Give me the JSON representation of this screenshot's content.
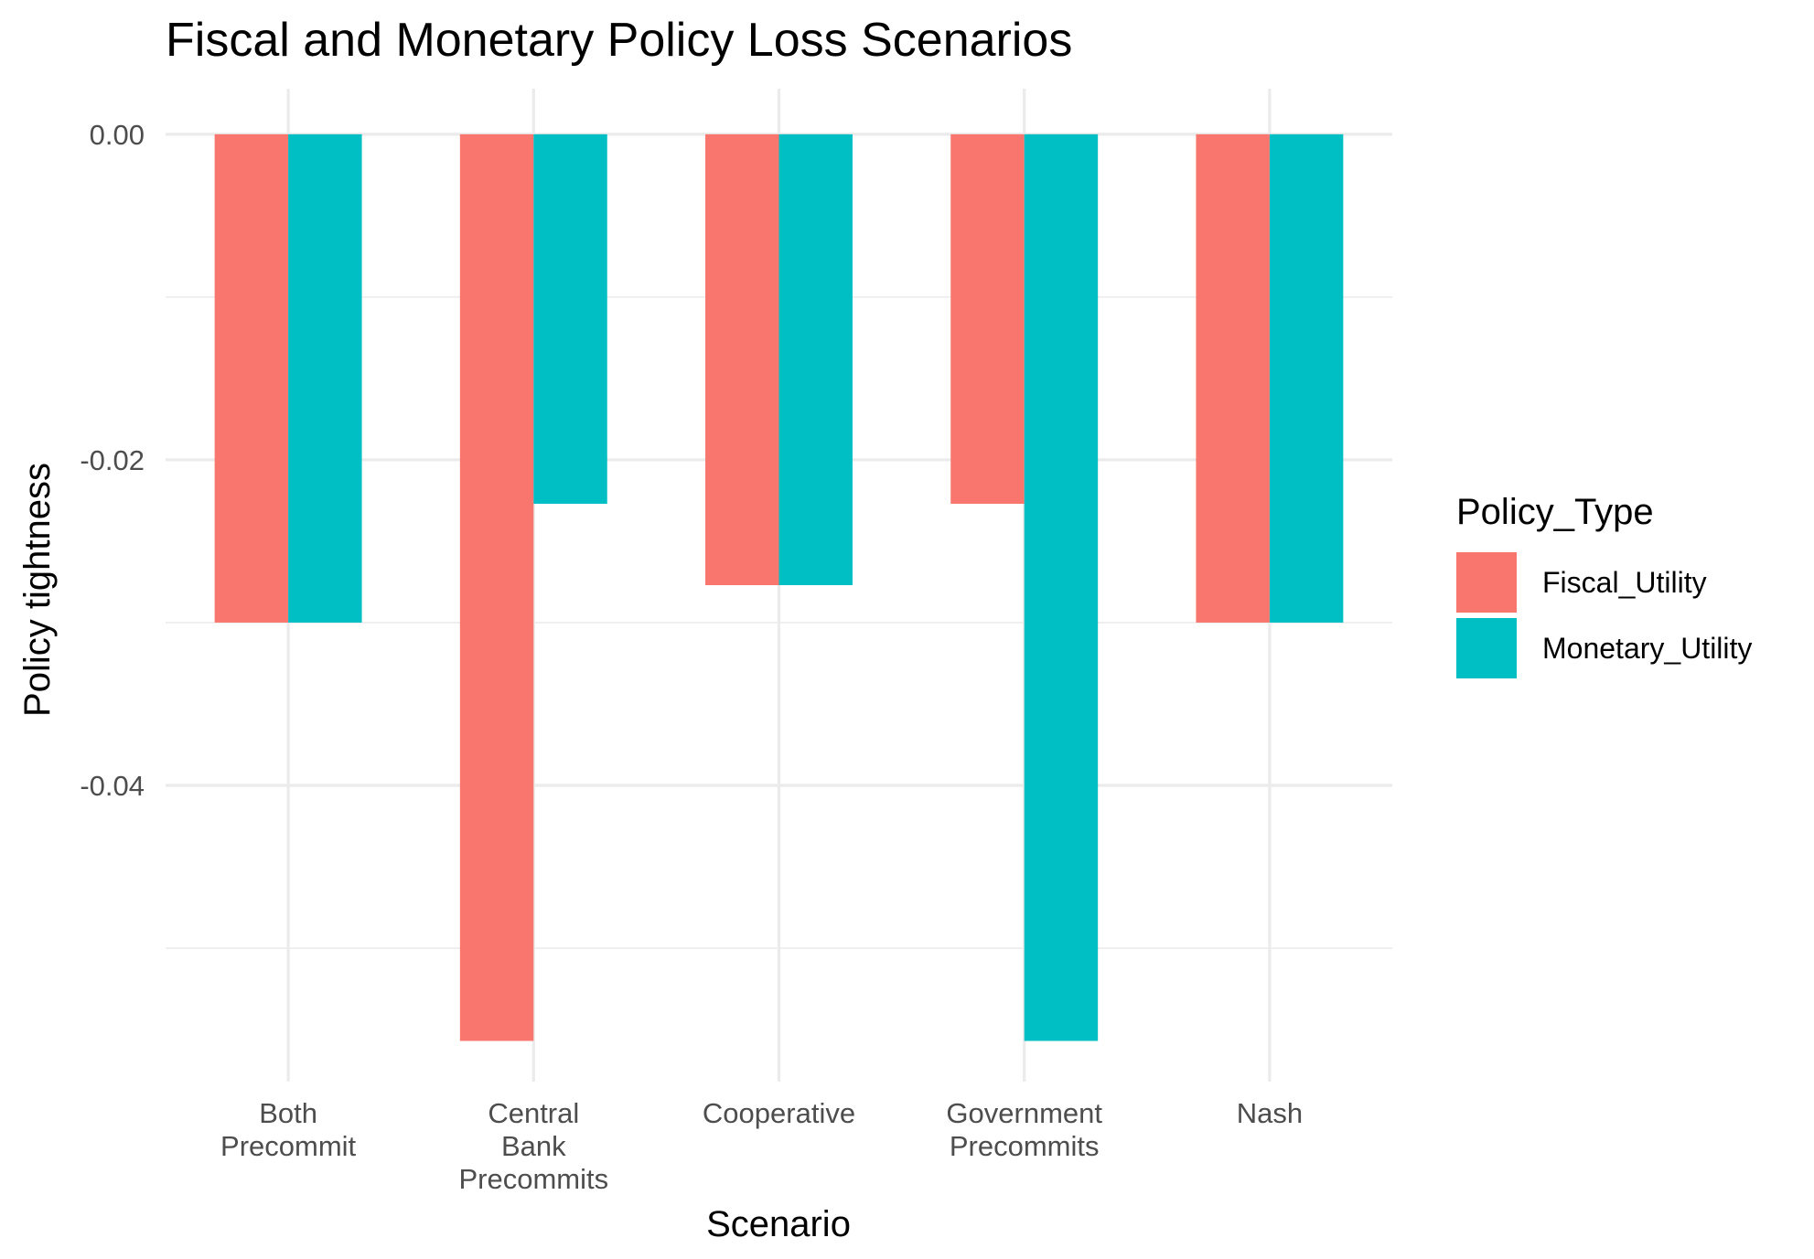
{
  "chart_data": {
    "type": "bar",
    "title": "Fiscal and Monetary Policy Loss Scenarios",
    "xlabel": "Scenario",
    "ylabel": "Policy tightness",
    "categories": [
      [
        "Both",
        "Precommit"
      ],
      [
        "Central",
        "Bank",
        "Precommits"
      ],
      [
        "Cooperative"
      ],
      [
        "Government",
        "Precommits"
      ],
      [
        "Nash"
      ]
    ],
    "series": [
      {
        "name": "Fiscal_Utility",
        "color": "#F8766D",
        "values": [
          -0.03,
          -0.0557,
          -0.0277,
          -0.0227,
          -0.03
        ]
      },
      {
        "name": "Monetary_Utility",
        "color": "#00BFC4",
        "values": [
          -0.03,
          -0.0227,
          -0.0277,
          -0.0557,
          -0.03
        ]
      }
    ],
    "ylim": [
      -0.0582,
      0.0028
    ],
    "yticks": [
      0.0,
      -0.02,
      -0.04
    ],
    "ytick_labels": [
      "0.00",
      "-0.02",
      "-0.04"
    ],
    "legend": {
      "title": "Policy_Type",
      "position": "right"
    },
    "grid": true
  }
}
